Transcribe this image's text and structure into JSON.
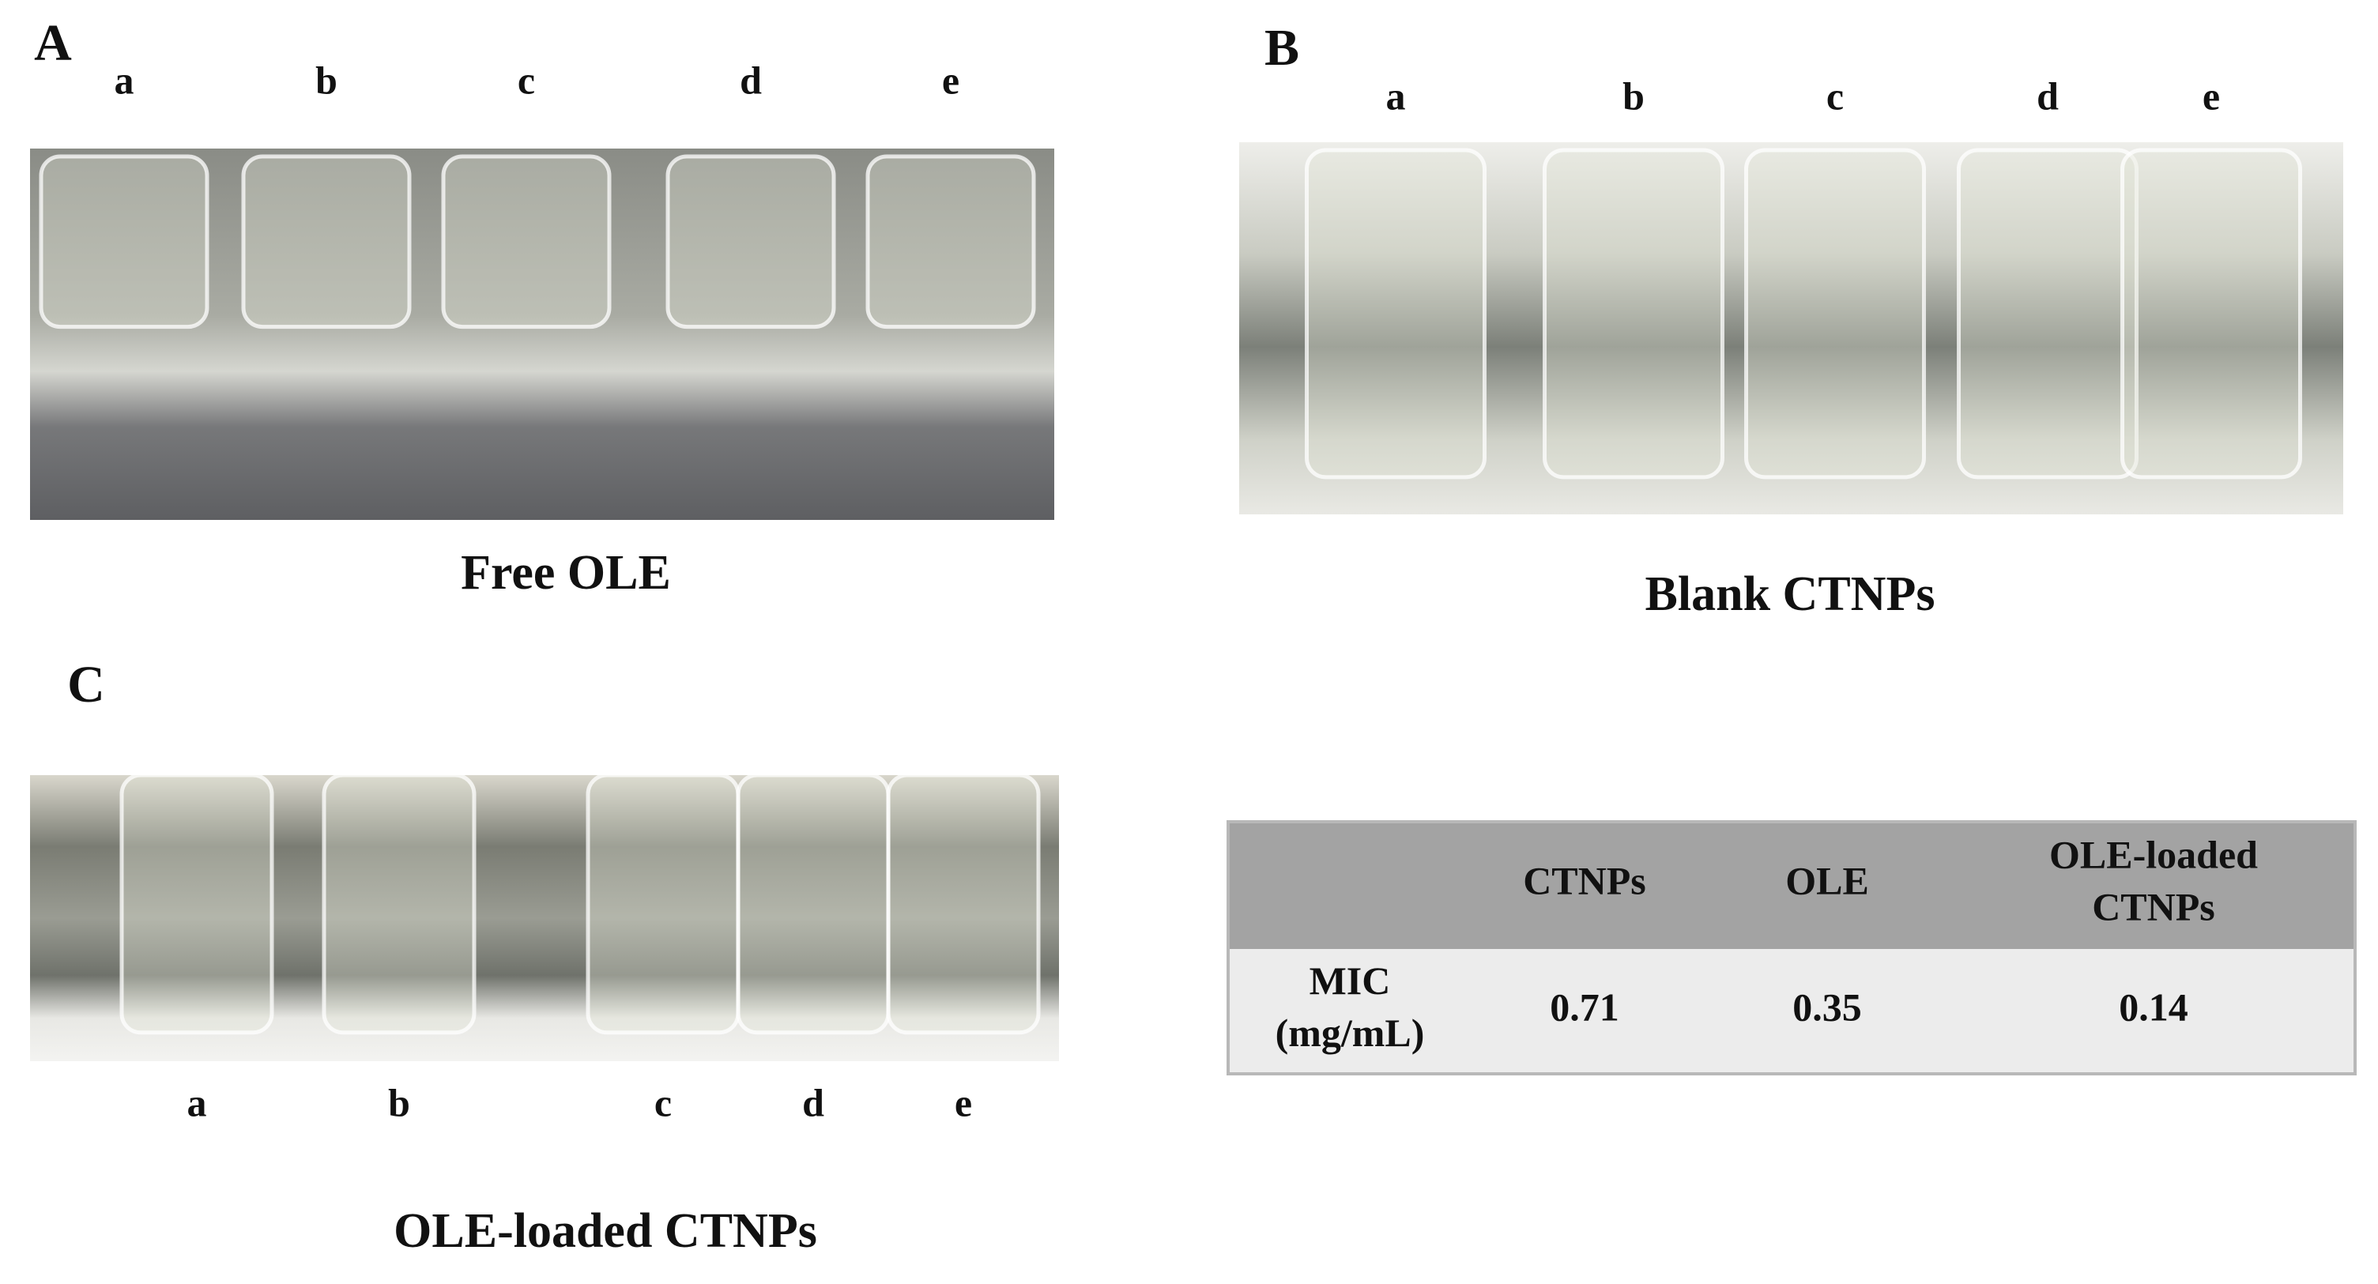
{
  "panels": [
    {
      "label": "A",
      "tubes": [
        "a",
        "b",
        "c",
        "d",
        "e"
      ],
      "caption": "Free OLE"
    },
    {
      "label": "B",
      "tubes": [
        "a",
        "b",
        "c",
        "d",
        "e"
      ],
      "caption": "Blank CTNPs"
    },
    {
      "label": "C",
      "tubes": [
        "a",
        "b",
        "c",
        "d",
        "e"
      ],
      "caption": "OLE-loaded CTNPs"
    }
  ],
  "table": {
    "header": [
      "CTNPs",
      "OLE",
      "OLE-loaded CTNPs"
    ],
    "rows": [
      {
        "label": "MIC (mg/mL)",
        "values": [
          0.71,
          0.35,
          0.14
        ]
      }
    ]
  }
}
